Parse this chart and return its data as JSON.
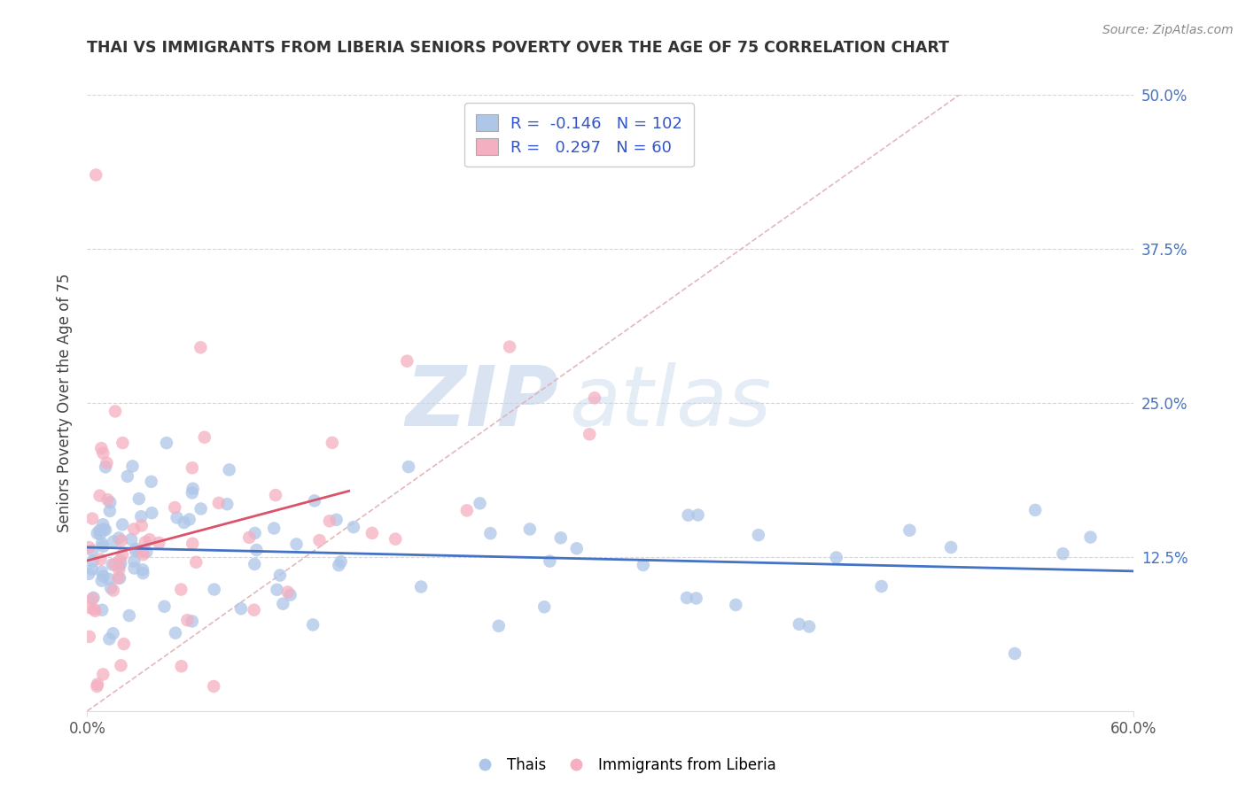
{
  "title": "THAI VS IMMIGRANTS FROM LIBERIA SENIORS POVERTY OVER THE AGE OF 75 CORRELATION CHART",
  "source": "Source: ZipAtlas.com",
  "ylabel": "Seniors Poverty Over the Age of 75",
  "xlim": [
    0.0,
    0.6
  ],
  "ylim": [
    0.0,
    0.5
  ],
  "ytick_vals": [
    0.0,
    0.125,
    0.25,
    0.375,
    0.5
  ],
  "ytick_labels": [
    "",
    "12.5%",
    "25.0%",
    "37.5%",
    "50.0%"
  ],
  "xtick_vals": [
    0.0,
    0.6
  ],
  "xtick_labels": [
    "0.0%",
    "60.0%"
  ],
  "blue_R": -0.146,
  "blue_N": 102,
  "pink_R": 0.297,
  "pink_N": 60,
  "blue_color": "#aec6e8",
  "pink_color": "#f4afc0",
  "blue_line_color": "#4472c4",
  "pink_line_color": "#d9546a",
  "diagonal_color": "#e0b0b8",
  "background_color": "#ffffff",
  "watermark_zip": "ZIP",
  "watermark_atlas": "atlas",
  "legend_color": "#3355cc",
  "grid_color": "#cccccc",
  "ytick_color": "#4472c4",
  "xtick_color": "#555555",
  "title_color": "#333333",
  "source_color": "#888888"
}
